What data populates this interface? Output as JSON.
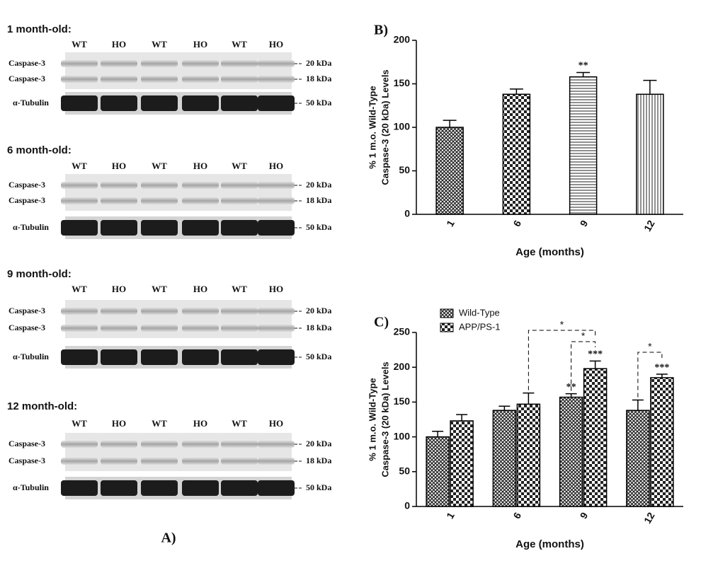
{
  "blots": [
    {
      "title": "1 month-old:",
      "lanes": [
        "WT",
        "HO",
        "WT",
        "HO",
        "WT",
        "HO"
      ],
      "rows": [
        {
          "label": "Caspase-3",
          "kda": "20 kDa"
        },
        {
          "label": "Caspase-3",
          "kda": "18 kDa"
        },
        {
          "label": "α-Tubulin",
          "kda": "50 kDa"
        }
      ]
    },
    {
      "title": "6 month-old:",
      "lanes": [
        "WT",
        "HO",
        "WT",
        "HO",
        "WT",
        "HO"
      ],
      "rows": [
        {
          "label": "Caspase-3",
          "kda": "20 kDa"
        },
        {
          "label": "Caspase-3",
          "kda": "18 kDa"
        },
        {
          "label": "α-Tubulin",
          "kda": "50 kDa"
        }
      ]
    },
    {
      "title": "9 month-old:",
      "lanes": [
        "WT",
        "HO",
        "WT",
        "HO",
        "WT",
        "HO"
      ],
      "rows": [
        {
          "label": "Caspase-3",
          "kda": "20 kDa"
        },
        {
          "label": "Caspase-3",
          "kda": "18 kDa"
        },
        {
          "label": "α-Tubulin",
          "kda": "50 kDa"
        }
      ]
    },
    {
      "title": "12 month-old:",
      "lanes": [
        "WT",
        "HO",
        "WT",
        "HO",
        "WT",
        "HO"
      ],
      "rows": [
        {
          "label": "Caspase-3",
          "kda": "20 kDa"
        },
        {
          "label": "Caspase-3",
          "kda": "18 kDa"
        },
        {
          "label": "α-Tubulin",
          "kda": "50 kDa"
        }
      ]
    }
  ],
  "blots_label": "A)",
  "chart_data": [
    {
      "type": "bar",
      "panel": "B)",
      "xlabel": "Age (months)",
      "ylabel": [
        "% 1 m.o. Wild-Type",
        "Caspase-3 (20 kDa) Levels"
      ],
      "categories": [
        "1",
        "6",
        "9",
        "12"
      ],
      "values": [
        100,
        138,
        158,
        138
      ],
      "errors": [
        8,
        6,
        5,
        16
      ],
      "significance": [
        null,
        null,
        "**",
        null
      ],
      "patterns": [
        "crosshatch",
        "checker",
        "hlines",
        "vlines"
      ],
      "ylim": [
        0,
        200
      ],
      "yticks": [
        0,
        50,
        100,
        150,
        200
      ]
    },
    {
      "type": "grouped-bar",
      "panel": "C)",
      "xlabel": "Age (months)",
      "ylabel": [
        "% 1 m.o. Wild-Type",
        "Caspase-3 (20 kDa) Levels"
      ],
      "categories": [
        "1",
        "6",
        "9",
        "12"
      ],
      "series": [
        {
          "name": "Wild-Type",
          "pattern": "crosshatch",
          "values": [
            100,
            138,
            157,
            138
          ],
          "errors": [
            8,
            6,
            5,
            15
          ],
          "significance": [
            null,
            null,
            "**",
            null
          ]
        },
        {
          "name": "APP/PS-1",
          "pattern": "checker",
          "values": [
            123,
            147,
            198,
            185
          ],
          "errors": [
            9,
            16,
            11,
            5
          ],
          "significance": [
            null,
            null,
            "***",
            "***"
          ]
        }
      ],
      "brackets": [
        "*",
        "*",
        "*"
      ],
      "legend": "top-left",
      "ylim": [
        0,
        250
      ],
      "yticks": [
        0,
        50,
        100,
        150,
        200,
        250
      ]
    }
  ]
}
